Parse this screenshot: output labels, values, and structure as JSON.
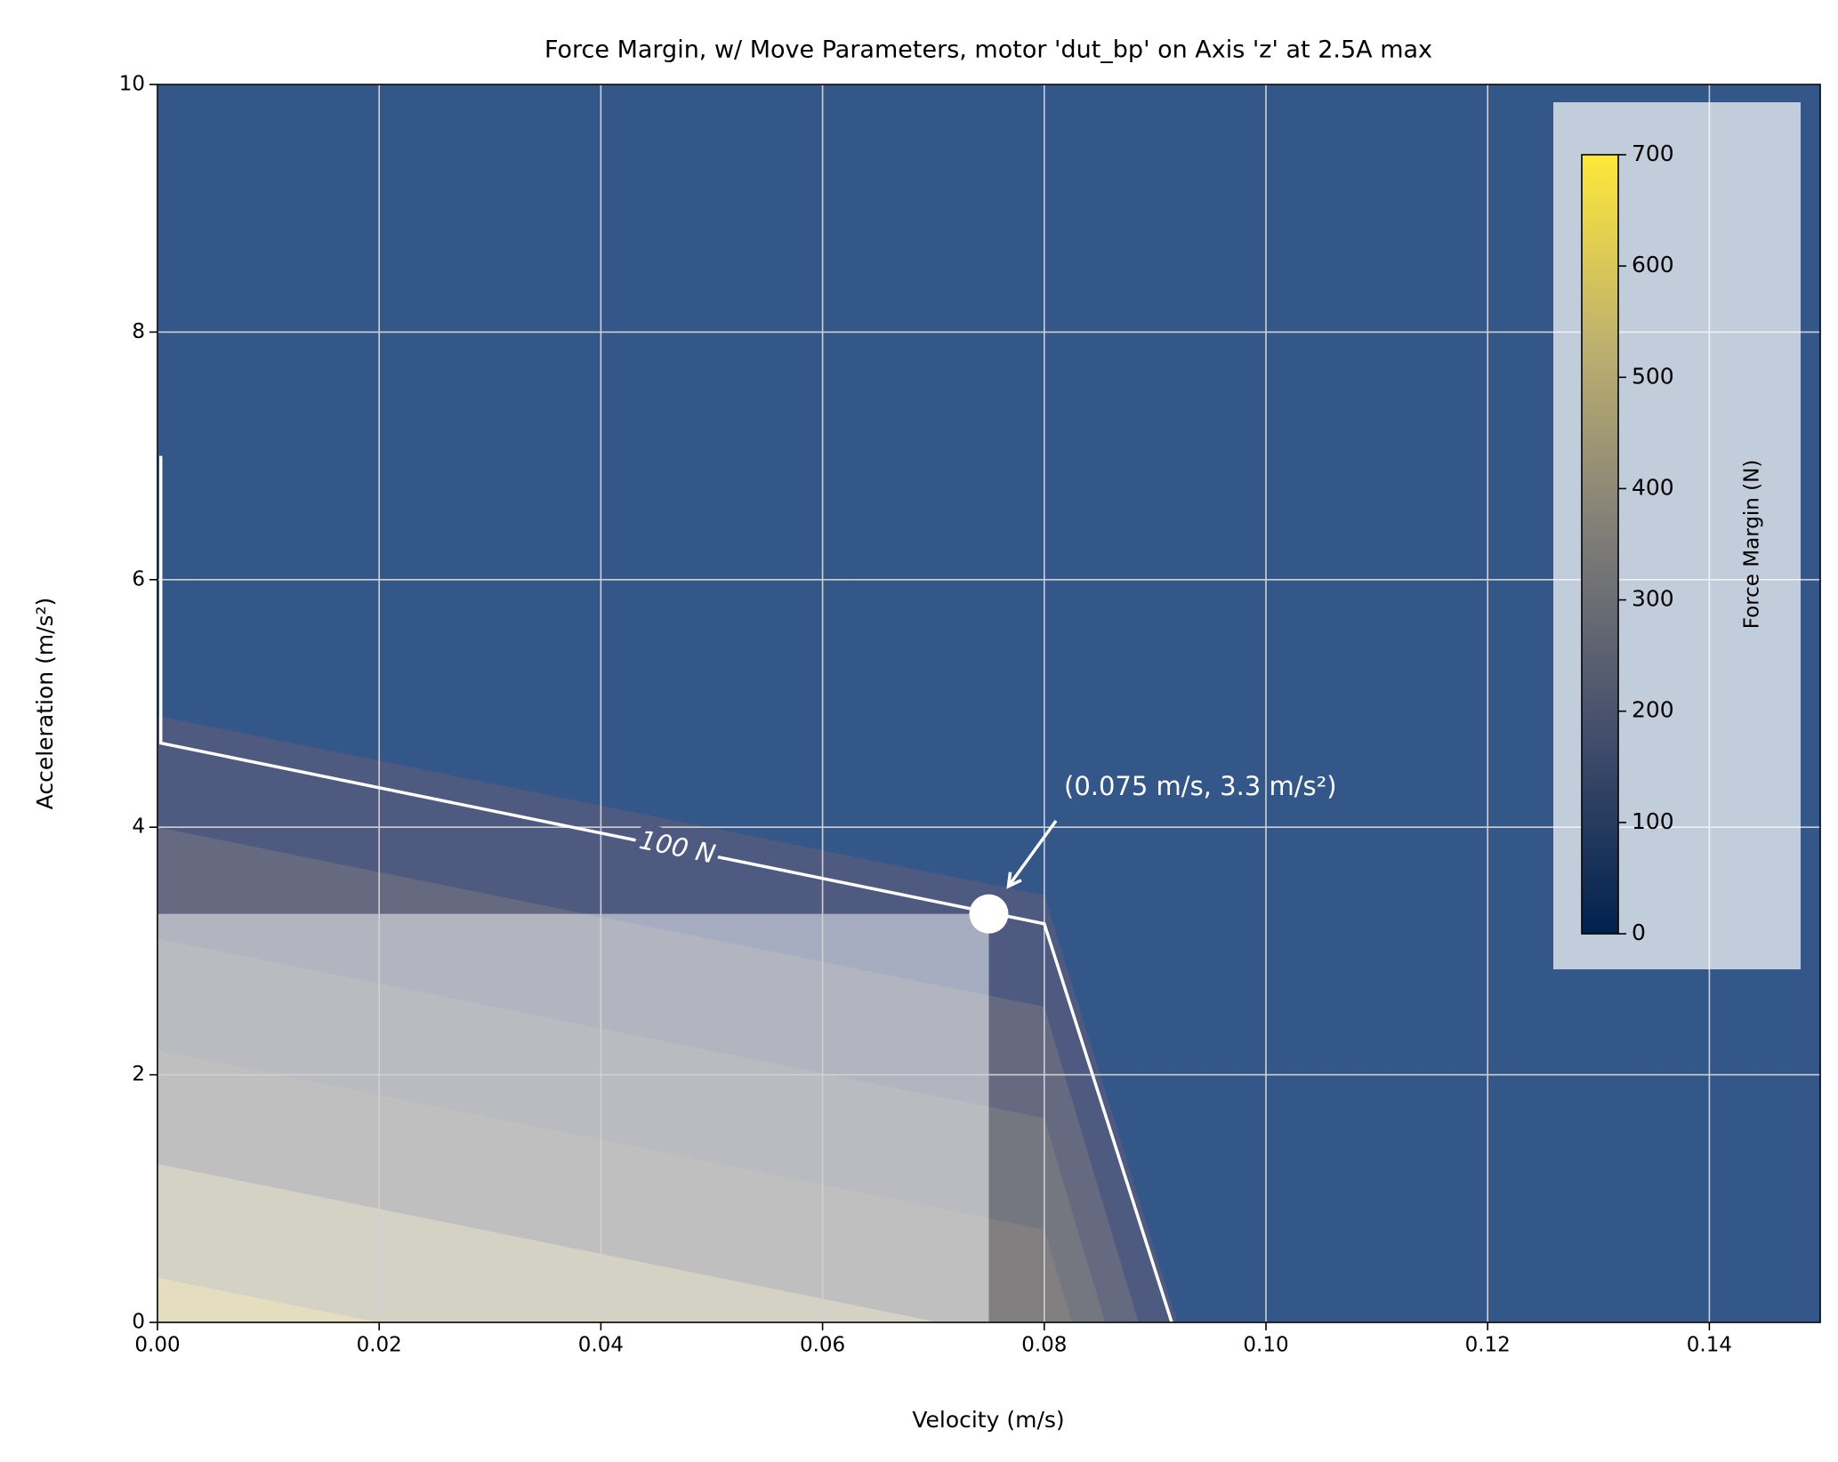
{
  "chart_data": {
    "type": "contour",
    "title": "Force Margin, w/ Move Parameters, motor 'dut_bp' on Axis 'z' at 2.5A max",
    "xlabel": "Velocity (m/s)",
    "ylabel": "Acceleration (m/s²)",
    "xlim": [
      0,
      0.15
    ],
    "ylim": [
      0,
      10
    ],
    "xticks": [
      {
        "value": 0,
        "label": "0.00"
      },
      {
        "value": 0.02,
        "label": "0.02"
      },
      {
        "value": 0.04,
        "label": "0.04"
      },
      {
        "value": 0.06,
        "label": "0.06"
      },
      {
        "value": 0.08,
        "label": "0.08"
      },
      {
        "value": 0.1,
        "label": "0.10"
      },
      {
        "value": 0.12,
        "label": "0.12"
      },
      {
        "value": 0.14,
        "label": "0.14"
      }
    ],
    "yticks": [
      0,
      2,
      4,
      6,
      8,
      10
    ],
    "grid": true,
    "background": "#34578a",
    "bands": [
      {
        "x": [
          0,
          0.08,
          0.092
        ],
        "y": [
          4.9,
          3.45,
          0
        ],
        "color": "#4e5a80"
      },
      {
        "x": [
          0,
          0.08,
          0.0885
        ],
        "y": [
          4.0,
          2.55,
          0
        ],
        "color": "#656a80"
      },
      {
        "x": [
          0,
          0.08,
          0.0855
        ],
        "y": [
          3.1,
          1.65,
          0
        ],
        "color": "#747680"
      },
      {
        "x": [
          0,
          0.08,
          0.0825
        ],
        "y": [
          2.2,
          0.75,
          0
        ],
        "color": "#817f80"
      },
      {
        "x": [
          0,
          0.0705
        ],
        "y": [
          1.28,
          0
        ],
        "color": "#a8a48a"
      },
      {
        "x": [
          0,
          0.02
        ],
        "y": [
          0.36,
          0
        ],
        "color": "#c8bb80"
      }
    ],
    "contour_line": {
      "label": "100 N",
      "x": [
        0.0003,
        0.0003,
        0.08,
        0.0915
      ],
      "y": [
        7.0,
        4.68,
        3.22,
        0
      ],
      "color": "#ffffff"
    },
    "point": {
      "x": 0.075,
      "y": 3.3,
      "annotation": "(0.075 m/s, 3.3 m/s²)"
    },
    "colorbar": {
      "label": "Force Margin (N)",
      "lim": [
        0,
        700
      ],
      "ticks": [
        0,
        100,
        200,
        300,
        400,
        500,
        600,
        700
      ],
      "colors": [
        "#00224e",
        "#414d6b",
        "#7c7b78",
        "#bcaf6f",
        "#fee838"
      ]
    }
  }
}
